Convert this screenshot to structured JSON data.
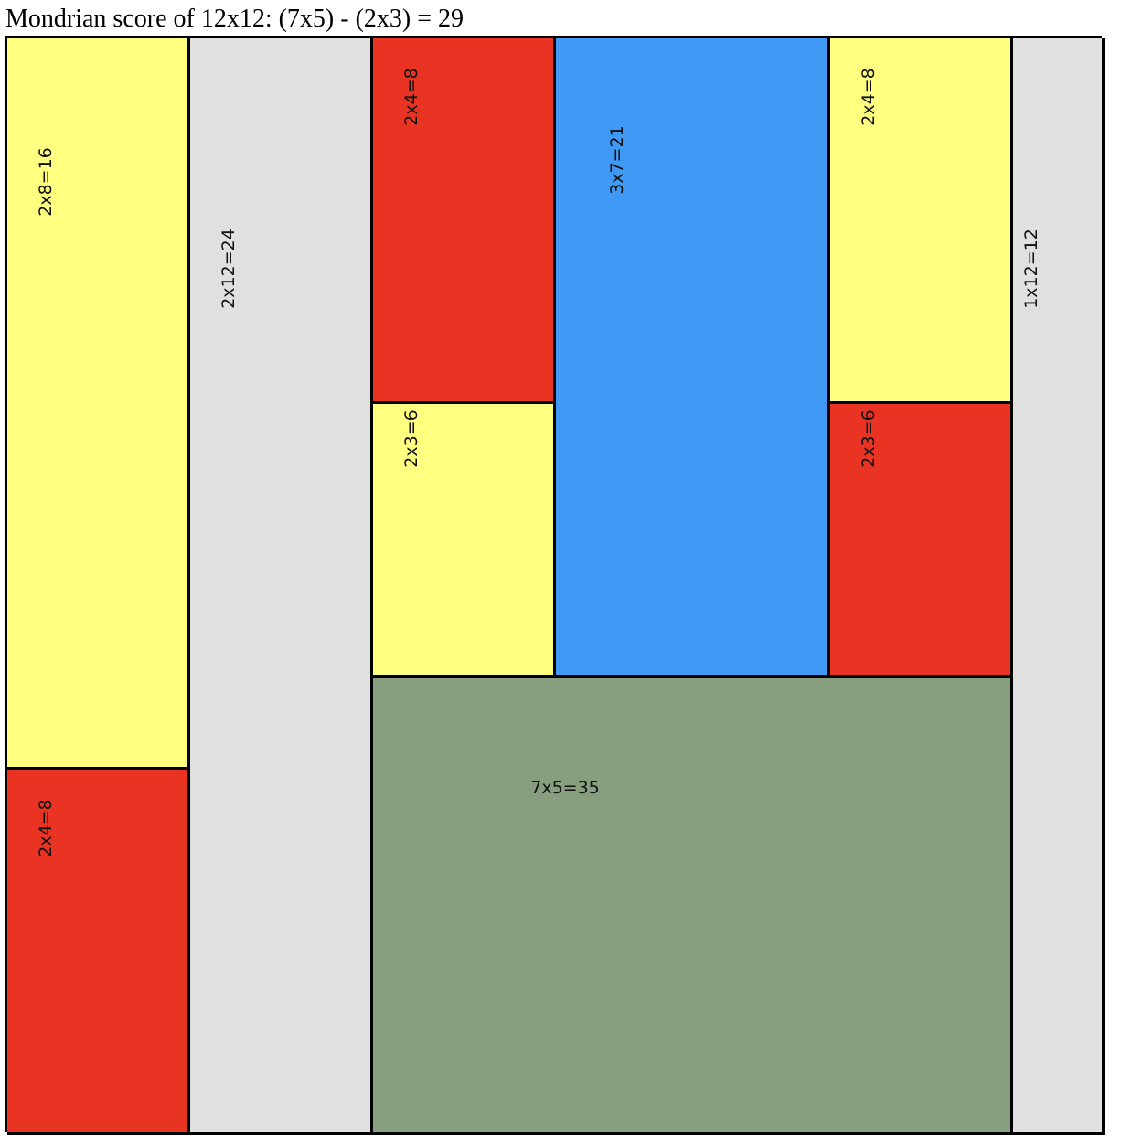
{
  "title": "Mondrian score of 12x12: (7x5) - (2x3) = 29",
  "grid": {
    "cols": 12,
    "rows": 12
  },
  "colors": {
    "yellow": "#ffff80",
    "red": "#e93424",
    "gray": "#e0e0e0",
    "blue": "#4199f6",
    "green": "#879f7e"
  },
  "rectangles": [
    {
      "label": "2x8=16",
      "col": 0,
      "row": 0,
      "w": 2,
      "h": 8,
      "color": "yellow",
      "orient": "vertical"
    },
    {
      "label": "2x4=8",
      "col": 0,
      "row": 8,
      "w": 2,
      "h": 4,
      "color": "red",
      "orient": "vertical"
    },
    {
      "label": "2x12=24",
      "col": 2,
      "row": 0,
      "w": 2,
      "h": 12,
      "color": "gray",
      "orient": "vertical"
    },
    {
      "label": "2x4=8",
      "col": 4,
      "row": 0,
      "w": 2,
      "h": 4,
      "color": "red",
      "orient": "vertical"
    },
    {
      "label": "2x3=6",
      "col": 4,
      "row": 4,
      "w": 2,
      "h": 3,
      "color": "yellow",
      "orient": "vertical"
    },
    {
      "label": "3x7=21",
      "col": 6,
      "row": 0,
      "w": 3,
      "h": 7,
      "color": "blue",
      "orient": "vertical"
    },
    {
      "label": "2x4=8",
      "col": 9,
      "row": 0,
      "w": 2,
      "h": 4,
      "color": "yellow",
      "orient": "vertical"
    },
    {
      "label": "2x3=6",
      "col": 9,
      "row": 4,
      "w": 2,
      "h": 3,
      "color": "red",
      "orient": "vertical"
    },
    {
      "label": "7x5=35",
      "col": 4,
      "row": 7,
      "w": 7,
      "h": 5,
      "color": "green",
      "orient": "horizontal"
    },
    {
      "label": "1x12=12",
      "col": 11,
      "row": 0,
      "w": 1,
      "h": 12,
      "color": "gray",
      "orient": "vertical"
    }
  ]
}
